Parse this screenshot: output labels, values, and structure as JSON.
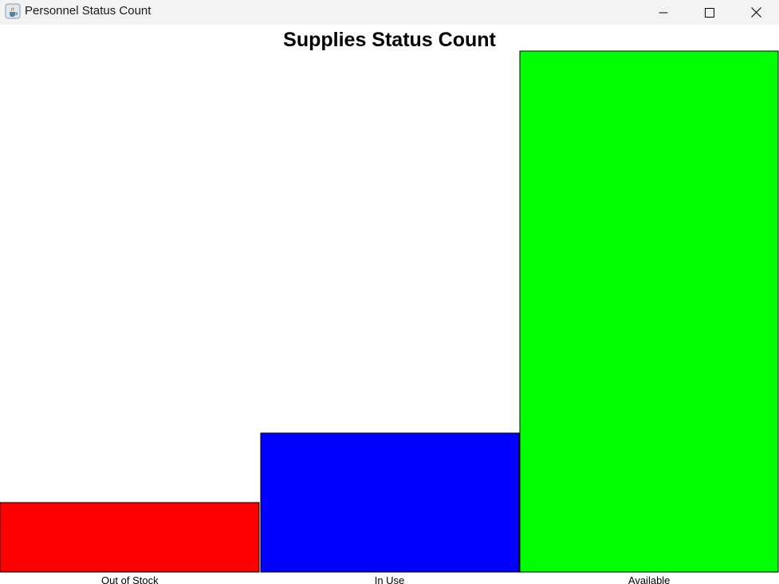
{
  "window": {
    "title": "Personnel Status Count",
    "icon": "java-cup-icon",
    "controls": {
      "minimize_icon": "minimize-icon",
      "maximize_icon": "maximize-icon",
      "close_icon": "close-icon"
    }
  },
  "chart_data": {
    "type": "bar",
    "title": "Supplies Status Count",
    "xlabel": "",
    "ylabel": "",
    "categories": [
      "Out of Stock",
      "In Use",
      "Available"
    ],
    "values": [
      1,
      2,
      7.5
    ],
    "colors": [
      "#ff0000",
      "#0000ff",
      "#00ff00"
    ],
    "bar_border_color": "#000000",
    "grid": false,
    "legend": "none"
  }
}
